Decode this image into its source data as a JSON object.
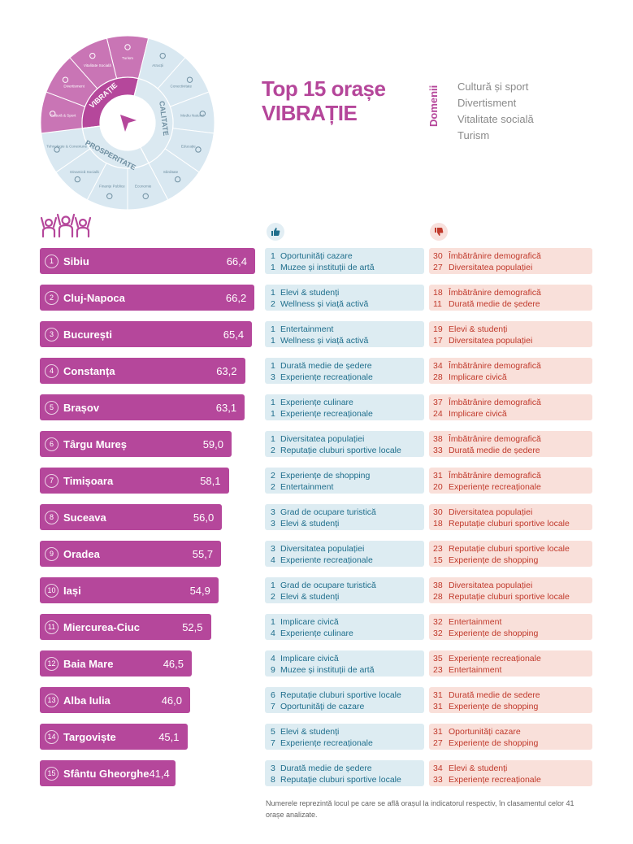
{
  "wheel": {
    "center_icon": "cursor-arrow-icon",
    "inner_labels": [
      "VIBRAȚIE",
      "CALITATE",
      "PROSPERITATE"
    ],
    "segments": [
      {
        "label": "Turism",
        "icon": "umbrella-icon",
        "group": "vibratie"
      },
      {
        "label": "Atracții",
        "icon": "museum-icon",
        "group": "calitate"
      },
      {
        "label": "Conectivitate",
        "icon": "bus-icon",
        "group": "calitate"
      },
      {
        "label": "Mediu Natural",
        "icon": "tree-icon",
        "group": "calitate"
      },
      {
        "label": "Educație",
        "icon": "graduation-cap-icon",
        "group": "calitate"
      },
      {
        "label": "Sănătate",
        "icon": "shield-icon",
        "group": "calitate"
      },
      {
        "label": "Economie",
        "icon": "chart-icon",
        "group": "prosperitate"
      },
      {
        "label": "Finanțe Publice",
        "icon": "money-icon",
        "group": "prosperitate"
      },
      {
        "label": "Dinamică Socială",
        "icon": "people-icon",
        "group": "prosperitate"
      },
      {
        "label": "Tehnologie & Conexiune",
        "icon": "chip-icon",
        "group": "prosperitate"
      },
      {
        "label": "Cultură & Sport",
        "icon": "ball-icon",
        "group": "vibratie"
      },
      {
        "label": "Divertisment",
        "icon": "party-icon",
        "group": "vibratie"
      },
      {
        "label": "Vitalitate Socială",
        "icon": "activity-icon",
        "group": "vibratie"
      }
    ],
    "colors": {
      "vibratie": "#b5479b",
      "vibratie_light": "#c975b5",
      "other": "#d9e8f1",
      "other_line": "#ffffff",
      "label_light": "#6f8fa1"
    }
  },
  "title": {
    "line1": "Top 15 orașe",
    "line2": "VIBRAȚIE"
  },
  "domains": {
    "label": "Domenii",
    "items": [
      "Cultură și sport",
      "Divertisment",
      "Vitalitate socială",
      "Turism"
    ]
  },
  "icons": {
    "people": "people-cheering-icon",
    "positive": "thumbs-up-icon",
    "negative": "thumbs-down-icon"
  },
  "colors": {
    "bar": "#b5479b",
    "positive_bg": "#ddecf2",
    "positive_text": "#1f6e8c",
    "negative_bg": "#f9e0da",
    "negative_text": "#c0392b"
  },
  "chart_data": {
    "type": "bar",
    "orientation": "horizontal",
    "categories": [
      "Sibiu",
      "Cluj-Napoca",
      "București",
      "Constanța",
      "Brașov",
      "Târgu Mureș",
      "Timișoara",
      "Suceava",
      "Oradea",
      "Iași",
      "Miercurea-Ciuc",
      "Baia Mare",
      "Alba Iulia",
      "Targoviște",
      "Sfântu Gheorghe"
    ],
    "ranks": [
      "1",
      "2",
      "3",
      "4",
      "5",
      "6",
      "7",
      "8",
      "9",
      "10",
      "11",
      "12",
      "13",
      "14",
      "15"
    ],
    "values": [
      66.4,
      66.2,
      65.4,
      63.2,
      63.1,
      59.0,
      58.1,
      56.0,
      55.7,
      54.9,
      52.5,
      46.5,
      46.0,
      45.1,
      41.4
    ],
    "value_labels": [
      "66,4",
      "66,2",
      "65,4",
      "63,2",
      "63,1",
      "59,0",
      "58,1",
      "56,0",
      "55,7",
      "54,9",
      "52,5",
      "46,5",
      "46,0",
      "45,1",
      "41,4"
    ]
  },
  "strengths": [
    [
      {
        "rank": "1",
        "text": "Oportunități cazare"
      },
      {
        "rank": "1",
        "text": "Muzee și instituții de artă"
      }
    ],
    [
      {
        "rank": "1",
        "text": "Elevi & studenți"
      },
      {
        "rank": "2",
        "text": "Wellness și viață activă"
      }
    ],
    [
      {
        "rank": "1",
        "text": "Entertainment"
      },
      {
        "rank": "1",
        "text": "Wellness și viață activă"
      }
    ],
    [
      {
        "rank": "1",
        "text": "Durată medie de ședere"
      },
      {
        "rank": "3",
        "text": "Experiențe recreaționale"
      }
    ],
    [
      {
        "rank": "1",
        "text": "Experiențe culinare"
      },
      {
        "rank": "1",
        "text": "Experiențe recreaționale"
      }
    ],
    [
      {
        "rank": "1",
        "text": "Diversitatea populației"
      },
      {
        "rank": "2",
        "text": "Reputație cluburi sportive locale"
      }
    ],
    [
      {
        "rank": "2",
        "text": "Experiențe de shopping"
      },
      {
        "rank": "2",
        "text": "Entertainment"
      }
    ],
    [
      {
        "rank": "3",
        "text": "Grad de ocupare turistică"
      },
      {
        "rank": "3",
        "text": "Elevi & studenți"
      }
    ],
    [
      {
        "rank": "3",
        "text": "Diversitatea populației"
      },
      {
        "rank": "4",
        "text": "Experiente recreaționale"
      }
    ],
    [
      {
        "rank": "1",
        "text": "Grad de ocupare turistică"
      },
      {
        "rank": "2",
        "text": "Elevi & studenți"
      }
    ],
    [
      {
        "rank": "1",
        "text": "Implicare civică"
      },
      {
        "rank": "4",
        "text": "Experiențe culinare"
      }
    ],
    [
      {
        "rank": "4",
        "text": "Implicare civică"
      },
      {
        "rank": "9",
        "text": "Muzee și instituții de artă"
      }
    ],
    [
      {
        "rank": "6",
        "text": "Reputație cluburi sportive locale"
      },
      {
        "rank": "7",
        "text": "Oportunități de cazare"
      }
    ],
    [
      {
        "rank": "5",
        "text": "Elevi & studenți"
      },
      {
        "rank": "7",
        "text": "Experiențe recreaționale"
      }
    ],
    [
      {
        "rank": "3",
        "text": "Durată medie de ședere"
      },
      {
        "rank": "8",
        "text": "Reputație cluburi sportive locale"
      }
    ]
  ],
  "weaknesses": [
    [
      {
        "rank": "30",
        "text": "Îmbătrânire demografică"
      },
      {
        "rank": "27",
        "text": "Diversitatea populației"
      }
    ],
    [
      {
        "rank": "18",
        "text": "Îmbătrânire demografică"
      },
      {
        "rank": "11",
        "text": "Durată medie de ședere"
      }
    ],
    [
      {
        "rank": "19",
        "text": "Elevi & studenți"
      },
      {
        "rank": "17",
        "text": "Diversitatea populației"
      }
    ],
    [
      {
        "rank": "34",
        "text": "Îmbătrânire demografică"
      },
      {
        "rank": "28",
        "text": "Implicare civică"
      }
    ],
    [
      {
        "rank": "37",
        "text": "Îmbătrânire demografică"
      },
      {
        "rank": "24",
        "text": "Implicare civică"
      }
    ],
    [
      {
        "rank": "38",
        "text": "Îmbătrânire demografică"
      },
      {
        "rank": "33",
        "text": "Durată medie de ședere"
      }
    ],
    [
      {
        "rank": "31",
        "text": "Îmbătrânire demografică"
      },
      {
        "rank": "20",
        "text": "Experiențe recreaționale"
      }
    ],
    [
      {
        "rank": "30",
        "text": "Diversitatea populației"
      },
      {
        "rank": "18",
        "text": "Reputație cluburi sportive locale"
      }
    ],
    [
      {
        "rank": "23",
        "text": "Reputație cluburi sportive locale"
      },
      {
        "rank": "15",
        "text": "Experiențe de shopping"
      }
    ],
    [
      {
        "rank": "38",
        "text": "Diversitatea populației"
      },
      {
        "rank": "28",
        "text": "Reputație cluburi sportive locale"
      }
    ],
    [
      {
        "rank": "32",
        "text": "Entertainment"
      },
      {
        "rank": "32",
        "text": "Experiențe de shopping"
      }
    ],
    [
      {
        "rank": "35",
        "text": "Experiențe recreaționale"
      },
      {
        "rank": "23",
        "text": "Entertainment"
      }
    ],
    [
      {
        "rank": "31",
        "text": "Durată medie de sedere"
      },
      {
        "rank": "31",
        "text": "Experiențe de shopping"
      }
    ],
    [
      {
        "rank": "31",
        "text": "Oportunități cazare"
      },
      {
        "rank": "27",
        "text": "Experiențe de shopping"
      }
    ],
    [
      {
        "rank": "34",
        "text": "Elevi & studenți"
      },
      {
        "rank": "33",
        "text": "Experiențe recreaționale"
      }
    ]
  ],
  "footnote": "Numerele reprezintă locul pe care se află orașul la indicatorul respectiv, în clasamentul celor 41 orașe analizate."
}
